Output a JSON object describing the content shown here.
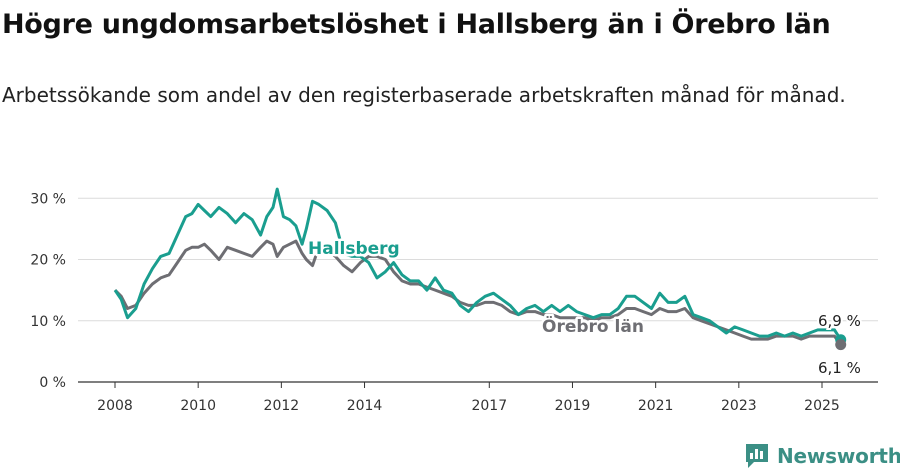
{
  "header": {
    "title": "Högre ungdomsarbetslöshet i Hallsberg än i Örebro län",
    "subtitle": "Arbetssökande som andel av den registerbaserade arbetskraften månad för månad."
  },
  "brand": {
    "name": "Newsworthy",
    "icon": "bar-chart-logo-icon",
    "color": "#3b8f85"
  },
  "chart_data": {
    "type": "line",
    "title": "Högre ungdomsarbetslöshet i Hallsberg än i Örebro län",
    "subtitle": "Arbetssökande som andel av den registerbaserade arbetskraften månad för månad.",
    "x_ticks": [
      2008,
      2010,
      2012,
      2014,
      2017,
      2019,
      2021,
      2023,
      2025
    ],
    "y_ticks": [
      0,
      10,
      20,
      30
    ],
    "y_tick_labels": [
      "0 %",
      "10 %",
      "20 %",
      "30 %"
    ],
    "xlim": [
      2007.1,
      2026.2
    ],
    "ylim": [
      0,
      32
    ],
    "grid": true,
    "legend": "inline labels",
    "series": [
      {
        "name": "Hallsberg",
        "color": "#1a9e8f",
        "label_text": "Hallsberg",
        "end_label": "6,9 %",
        "x": [
          2008.0,
          2008.15,
          2008.3,
          2008.5,
          2008.7,
          2008.9,
          2009.1,
          2009.3,
          2009.5,
          2009.7,
          2009.85,
          2010.0,
          2010.15,
          2010.3,
          2010.5,
          2010.7,
          2010.9,
          2011.1,
          2011.3,
          2011.5,
          2011.65,
          2011.8,
          2011.9,
          2012.05,
          2012.2,
          2012.35,
          2012.5,
          2012.6,
          2012.75,
          2012.9,
          2013.1,
          2013.3,
          2013.5,
          2013.7,
          2013.9,
          2014.1,
          2014.3,
          2014.5,
          2014.7,
          2014.9,
          2015.1,
          2015.3,
          2015.5,
          2015.7,
          2015.9,
          2016.1,
          2016.3,
          2016.5,
          2016.7,
          2016.9,
          2017.1,
          2017.3,
          2017.5,
          2017.7,
          2017.9,
          2018.1,
          2018.3,
          2018.5,
          2018.7,
          2018.9,
          2019.1,
          2019.3,
          2019.5,
          2019.7,
          2019.9,
          2020.1,
          2020.3,
          2020.5,
          2020.7,
          2020.9,
          2021.1,
          2021.3,
          2021.5,
          2021.7,
          2021.9,
          2022.1,
          2022.3,
          2022.5,
          2022.7,
          2022.9,
          2023.1,
          2023.3,
          2023.5,
          2023.7,
          2023.9,
          2024.1,
          2024.3,
          2024.5,
          2024.7,
          2024.9,
          2025.1,
          2025.3,
          2025.45
        ],
        "y": [
          15.0,
          13.5,
          10.5,
          12.0,
          16.0,
          18.5,
          20.5,
          21.0,
          24.0,
          27.0,
          27.5,
          29.0,
          28.0,
          27.0,
          28.5,
          27.5,
          26.0,
          27.5,
          26.5,
          24.0,
          27.0,
          28.5,
          31.5,
          27.0,
          26.5,
          25.5,
          22.5,
          25.0,
          29.5,
          29.0,
          28.0,
          26.0,
          21.0,
          20.5,
          20.5,
          19.5,
          17.0,
          18.0,
          19.5,
          17.5,
          16.5,
          16.5,
          15.0,
          17.0,
          15.0,
          14.5,
          12.5,
          11.5,
          13.0,
          14.0,
          14.5,
          13.5,
          12.5,
          11.0,
          12.0,
          12.5,
          11.5,
          12.5,
          11.5,
          12.5,
          11.5,
          11.0,
          10.5,
          11.0,
          11.0,
          12.0,
          14.0,
          14.0,
          13.0,
          12.0,
          14.5,
          13.0,
          13.0,
          14.0,
          11.0,
          10.5,
          10.0,
          9.0,
          8.0,
          9.0,
          8.5,
          8.0,
          7.5,
          7.5,
          8.0,
          7.5,
          8.0,
          7.5,
          8.0,
          8.5,
          8.5,
          8.5,
          6.9
        ]
      },
      {
        "name": "Örebro län",
        "color": "#6e6e73",
        "label_text": "Örebro län",
        "end_label": "6,1 %",
        "x": [
          2008.0,
          2008.15,
          2008.3,
          2008.5,
          2008.7,
          2008.9,
          2009.1,
          2009.3,
          2009.5,
          2009.7,
          2009.85,
          2010.0,
          2010.15,
          2010.3,
          2010.5,
          2010.7,
          2010.9,
          2011.1,
          2011.3,
          2011.5,
          2011.65,
          2011.8,
          2011.9,
          2012.05,
          2012.2,
          2012.35,
          2012.5,
          2012.6,
          2012.75,
          2012.9,
          2013.1,
          2013.3,
          2013.5,
          2013.7,
          2013.9,
          2014.1,
          2014.3,
          2014.5,
          2014.7,
          2014.9,
          2015.1,
          2015.3,
          2015.5,
          2015.7,
          2015.9,
          2016.1,
          2016.3,
          2016.5,
          2016.7,
          2016.9,
          2017.1,
          2017.3,
          2017.5,
          2017.7,
          2017.9,
          2018.1,
          2018.3,
          2018.5,
          2018.7,
          2018.9,
          2019.1,
          2019.3,
          2019.5,
          2019.7,
          2019.9,
          2020.1,
          2020.3,
          2020.5,
          2020.7,
          2020.9,
          2021.1,
          2021.3,
          2021.5,
          2021.7,
          2021.9,
          2022.1,
          2022.3,
          2022.5,
          2022.7,
          2022.9,
          2023.1,
          2023.3,
          2023.5,
          2023.7,
          2023.9,
          2024.1,
          2024.3,
          2024.5,
          2024.7,
          2024.9,
          2025.1,
          2025.3,
          2025.45
        ],
        "y": [
          15.0,
          14.0,
          12.0,
          12.5,
          14.5,
          16.0,
          17.0,
          17.5,
          19.5,
          21.5,
          22.0,
          22.0,
          22.5,
          21.5,
          20.0,
          22.0,
          21.5,
          21.0,
          20.5,
          22.0,
          23.0,
          22.5,
          20.5,
          22.0,
          22.5,
          23.0,
          21.0,
          20.0,
          19.0,
          22.0,
          21.5,
          20.5,
          19.0,
          18.0,
          19.5,
          20.5,
          20.5,
          20.0,
          18.0,
          16.5,
          16.0,
          16.0,
          15.5,
          15.0,
          14.5,
          14.0,
          13.0,
          12.5,
          12.5,
          13.0,
          13.0,
          12.5,
          11.5,
          11.0,
          11.5,
          11.5,
          11.0,
          11.0,
          10.5,
          10.5,
          10.5,
          10.5,
          10.0,
          10.5,
          10.5,
          11.0,
          12.0,
          12.0,
          11.5,
          11.0,
          12.0,
          11.5,
          11.5,
          12.0,
          10.5,
          10.0,
          9.5,
          9.0,
          8.5,
          8.0,
          7.5,
          7.0,
          7.0,
          7.0,
          7.5,
          7.5,
          7.5,
          7.0,
          7.5,
          7.5,
          7.5,
          7.5,
          6.1
        ]
      }
    ]
  }
}
